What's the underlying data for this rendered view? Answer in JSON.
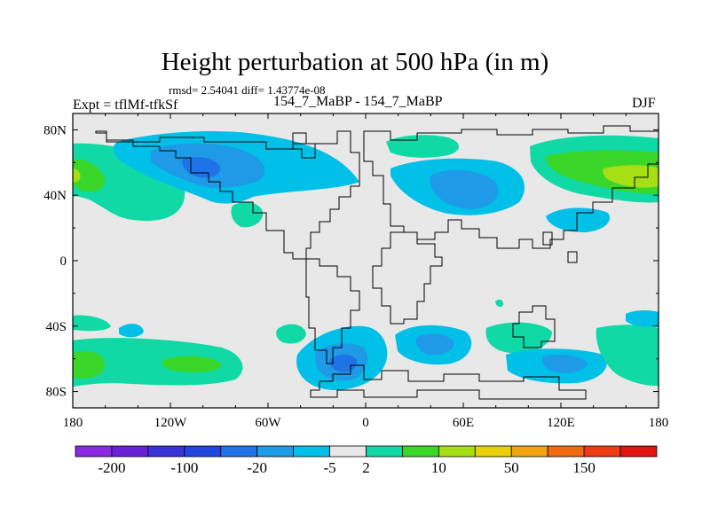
{
  "header": {
    "title": "Height perturbation at 500 hPa (in m)",
    "stats": "rmsd= 2.54041 diff= 1.43774e-08",
    "left_label": "Expt = tflMf-tfkSf",
    "center_label": "154_7_MaBP - 154_7_MaBP",
    "right_label": "DJF"
  },
  "chart_data": {
    "type": "contour-map",
    "title": "Height perturbation at 500 hPa (in m)",
    "projection": "cylindrical equidistant",
    "xlim": [
      -180,
      180
    ],
    "ylim": [
      -90,
      90
    ],
    "x_ticks": [
      {
        "value": -180,
        "label": "180"
      },
      {
        "value": -120,
        "label": "120W"
      },
      {
        "value": -60,
        "label": "60W"
      },
      {
        "value": 0,
        "label": "0"
      },
      {
        "value": 60,
        "label": "60E"
      },
      {
        "value": 120,
        "label": "120E"
      },
      {
        "value": 180,
        "label": "180"
      }
    ],
    "y_ticks": [
      {
        "value": 80,
        "label": "80N"
      },
      {
        "value": 40,
        "label": "40N"
      },
      {
        "value": 0,
        "label": "0"
      },
      {
        "value": -40,
        "label": "40S"
      },
      {
        "value": -80,
        "label": "80S"
      }
    ],
    "colorbar": {
      "colors": [
        "#8a2be2",
        "#6a20d8",
        "#3a33d9",
        "#2244e0",
        "#1f73e6",
        "#1e9ae6",
        "#00c0e8",
        "#e8e8e8",
        "#10d9a6",
        "#3ad629",
        "#a6e014",
        "#e8d00a",
        "#f0a510",
        "#f06a10",
        "#ee3b12",
        "#e0150f"
      ],
      "labels": [
        "-200",
        "-100",
        "-20",
        "-5",
        "2",
        "10",
        "50",
        "150"
      ],
      "label_boundaries": [
        1,
        3,
        5,
        7,
        8,
        10,
        12,
        14
      ]
    },
    "anomalies": [
      {
        "region": "North America",
        "lon": -105,
        "lat": 60,
        "level": "negative",
        "class_index": 6
      },
      {
        "region": "North America core",
        "lon": -100,
        "lat": 58,
        "level": "negative",
        "class_index": 5
      },
      {
        "region": "North Pacific",
        "lon": -165,
        "lat": 50,
        "level": "positive",
        "class_index": 9
      },
      {
        "region": "North Pacific edge",
        "lon": 165,
        "lat": 55,
        "level": "positive",
        "class_index": 10
      },
      {
        "region": "Siberia",
        "lon": 50,
        "lat": 50,
        "level": "negative",
        "class_index": 6
      },
      {
        "region": "Siberia core",
        "lon": 55,
        "lat": 48,
        "level": "negative",
        "class_index": 5
      },
      {
        "region": "Southern Ocean Atlantic",
        "lon": -10,
        "lat": -60,
        "level": "negative",
        "class_index": 6
      },
      {
        "region": "South Pacific",
        "lon": -160,
        "lat": -62,
        "level": "positive",
        "class_index": 9
      },
      {
        "region": "Southern Ocean Indian",
        "lon": 130,
        "lat": -62,
        "level": "negative",
        "class_index": 6
      }
    ]
  }
}
